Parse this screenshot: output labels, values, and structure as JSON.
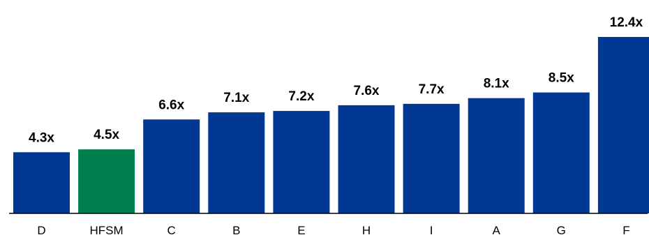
{
  "chart_data": {
    "type": "bar",
    "title": "",
    "xlabel": "",
    "ylabel": "",
    "categories": [
      "D",
      "HFSM",
      "C",
      "B",
      "E",
      "H",
      "I",
      "A",
      "G",
      "F"
    ],
    "values": [
      4.3,
      4.5,
      6.6,
      7.1,
      7.2,
      7.6,
      7.7,
      8.1,
      8.5,
      12.4
    ],
    "value_labels": [
      "4.3x",
      "4.5x",
      "6.6x",
      "7.1x",
      "7.2x",
      "7.6x",
      "7.7x",
      "8.1x",
      "8.5x",
      "12.4x"
    ],
    "ylim": [
      0,
      12.4
    ],
    "grid": false,
    "legend": "none",
    "highlight_category": "HFSM",
    "colors": {
      "default_bar": "#003894",
      "highlight_bar": "#00804f",
      "axis": "#000000"
    }
  }
}
